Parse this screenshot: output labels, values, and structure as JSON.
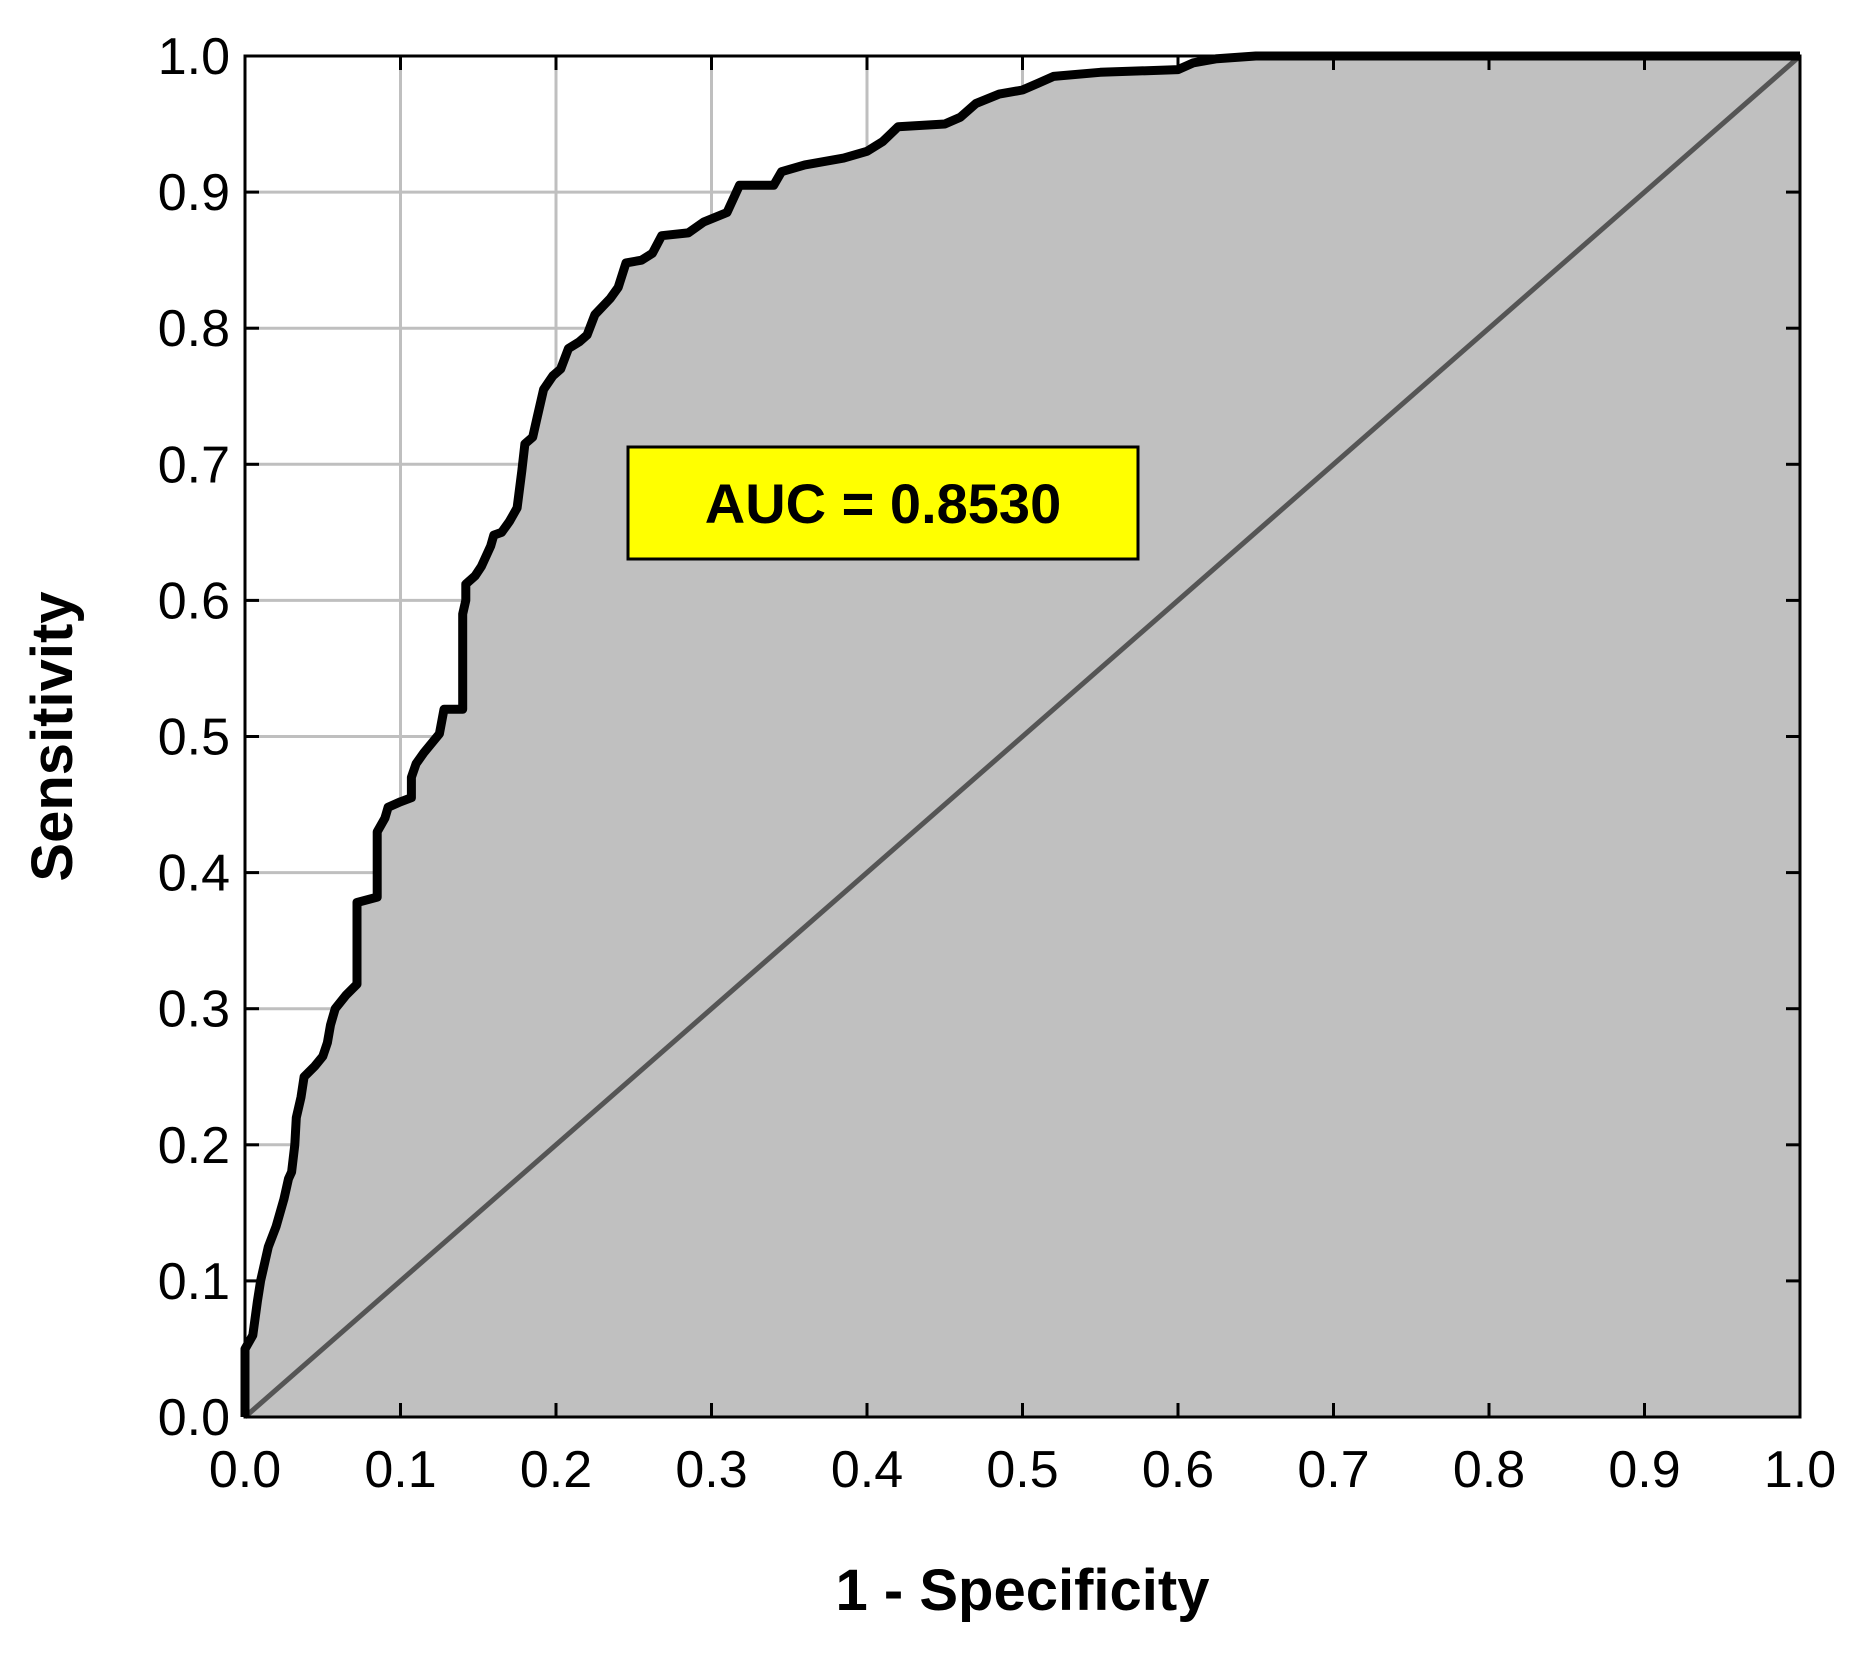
{
  "chart_data": {
    "type": "line",
    "title": "",
    "xlabel": "1 - Specificity",
    "ylabel": "Sensitivity",
    "xlim": [
      0,
      1
    ],
    "ylim": [
      0,
      1
    ],
    "x_ticks": [
      "0.0",
      "0.1",
      "0.2",
      "0.3",
      "0.4",
      "0.5",
      "0.6",
      "0.7",
      "0.8",
      "0.9",
      "1.0"
    ],
    "y_ticks": [
      "0.0",
      "0.1",
      "0.2",
      "0.3",
      "0.4",
      "0.5",
      "0.6",
      "0.7",
      "0.8",
      "0.9",
      "1.0"
    ],
    "grid": "partial (upper-left region only)",
    "fill_under_curve": true,
    "annotation": "AUC = 0.8530",
    "colors": {
      "curve": "#000000",
      "fill": "#c0c0c0",
      "diagonal": "#555555",
      "grid": "#bfbfbf",
      "annotation_bg": "#ffff00"
    },
    "series": [
      {
        "role": "roc-curve",
        "points": [
          [
            0.0,
            0.0
          ],
          [
            0.0,
            0.05
          ],
          [
            0.005,
            0.06
          ],
          [
            0.008,
            0.085
          ],
          [
            0.01,
            0.1
          ],
          [
            0.012,
            0.11
          ],
          [
            0.015,
            0.125
          ],
          [
            0.02,
            0.14
          ],
          [
            0.025,
            0.16
          ],
          [
            0.028,
            0.175
          ],
          [
            0.03,
            0.18
          ],
          [
            0.032,
            0.2
          ],
          [
            0.033,
            0.22
          ],
          [
            0.036,
            0.235
          ],
          [
            0.038,
            0.25
          ],
          [
            0.045,
            0.258
          ],
          [
            0.05,
            0.265
          ],
          [
            0.053,
            0.275
          ],
          [
            0.055,
            0.288
          ],
          [
            0.058,
            0.3
          ],
          [
            0.065,
            0.31
          ],
          [
            0.072,
            0.318
          ],
          [
            0.072,
            0.378
          ],
          [
            0.085,
            0.382
          ],
          [
            0.085,
            0.43
          ],
          [
            0.09,
            0.44
          ],
          [
            0.092,
            0.448
          ],
          [
            0.1,
            0.452
          ],
          [
            0.107,
            0.455
          ],
          [
            0.107,
            0.47
          ],
          [
            0.11,
            0.48
          ],
          [
            0.115,
            0.488
          ],
          [
            0.12,
            0.495
          ],
          [
            0.125,
            0.502
          ],
          [
            0.128,
            0.52
          ],
          [
            0.135,
            0.52
          ],
          [
            0.14,
            0.52
          ],
          [
            0.14,
            0.59
          ],
          [
            0.142,
            0.6
          ],
          [
            0.142,
            0.612
          ],
          [
            0.148,
            0.618
          ],
          [
            0.152,
            0.625
          ],
          [
            0.158,
            0.64
          ],
          [
            0.16,
            0.648
          ],
          [
            0.165,
            0.65
          ],
          [
            0.17,
            0.658
          ],
          [
            0.175,
            0.668
          ],
          [
            0.178,
            0.695
          ],
          [
            0.18,
            0.715
          ],
          [
            0.185,
            0.72
          ],
          [
            0.188,
            0.735
          ],
          [
            0.192,
            0.755
          ],
          [
            0.198,
            0.765
          ],
          [
            0.203,
            0.77
          ],
          [
            0.208,
            0.785
          ],
          [
            0.215,
            0.79
          ],
          [
            0.22,
            0.795
          ],
          [
            0.225,
            0.81
          ],
          [
            0.235,
            0.822
          ],
          [
            0.24,
            0.83
          ],
          [
            0.245,
            0.848
          ],
          [
            0.255,
            0.85
          ],
          [
            0.262,
            0.855
          ],
          [
            0.268,
            0.868
          ],
          [
            0.285,
            0.87
          ],
          [
            0.295,
            0.878
          ],
          [
            0.31,
            0.885
          ],
          [
            0.318,
            0.905
          ],
          [
            0.34,
            0.905
          ],
          [
            0.345,
            0.915
          ],
          [
            0.36,
            0.92
          ],
          [
            0.385,
            0.925
          ],
          [
            0.4,
            0.93
          ],
          [
            0.41,
            0.937
          ],
          [
            0.42,
            0.948
          ],
          [
            0.45,
            0.95
          ],
          [
            0.46,
            0.955
          ],
          [
            0.47,
            0.965
          ],
          [
            0.485,
            0.972
          ],
          [
            0.5,
            0.975
          ],
          [
            0.51,
            0.98
          ],
          [
            0.52,
            0.985
          ],
          [
            0.55,
            0.988
          ],
          [
            0.6,
            0.99
          ],
          [
            0.61,
            0.995
          ],
          [
            0.625,
            0.998
          ],
          [
            0.65,
            1.0
          ],
          [
            0.8,
            1.0
          ],
          [
            1.0,
            1.0
          ]
        ]
      },
      {
        "role": "reference-diagonal",
        "points": [
          [
            0,
            0
          ],
          [
            1,
            1
          ]
        ]
      }
    ]
  }
}
